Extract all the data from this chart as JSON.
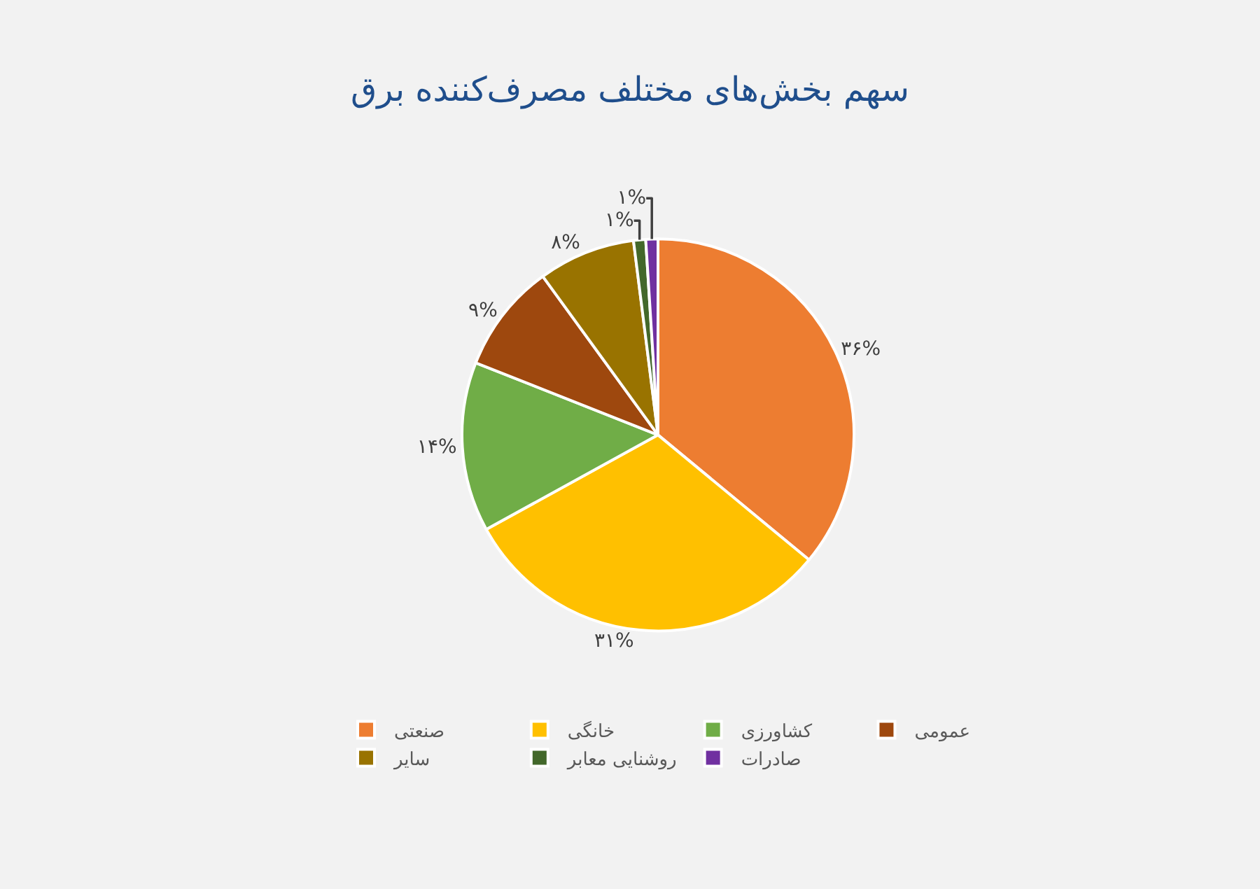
{
  "chart_data": {
    "type": "pie",
    "title": "سهم بخش‌های مختلف مصرف‌کننده برق",
    "categories": [
      "صنعتی",
      "خانگی",
      "کشاورزی",
      "عمومی",
      "سایر",
      "روشنایی معابر",
      "صادرات"
    ],
    "values": [
      36,
      31,
      14,
      9,
      8,
      1,
      1
    ],
    "colors": [
      "#ed7d31",
      "#ffc000",
      "#70ad47",
      "#9e480e",
      "#997300",
      "#43682b",
      "#7030a0"
    ],
    "value_labels": [
      "۳۶%",
      "۳۱%",
      "۱۴%",
      "۹%",
      "۸%",
      "۱%",
      "۱%"
    ],
    "legend": "bottom"
  }
}
